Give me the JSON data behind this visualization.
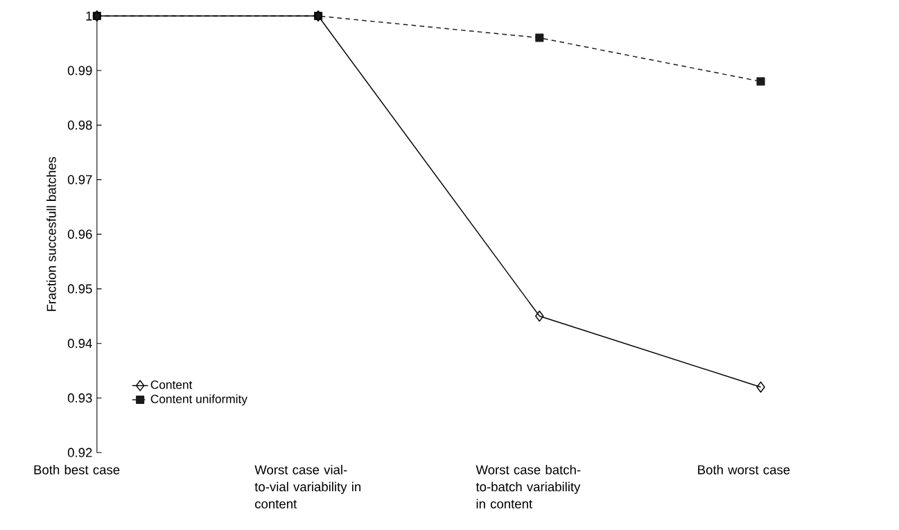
{
  "chart_data": {
    "type": "line",
    "ylabel": "Fraction succesfull batches",
    "categories": [
      "Both best case",
      "Worst case vial-to-vial variability in content",
      "Worst case batch-to-batch variability in content",
      "Both worst case"
    ],
    "series": [
      {
        "name": "Content uniformity",
        "color": "#1a1a1a",
        "values": [
          1,
          1,
          0.996,
          0.988
        ],
        "marker": "square",
        "line_style": "dashed"
      },
      {
        "name": "Content",
        "color": "#000000",
        "values": [
          1,
          1,
          0.945,
          0.932
        ],
        "marker": "diamond",
        "line_style": "solid"
      }
    ],
    "ylim": [
      0.92,
      1
    ],
    "yticks": [
      0.92,
      0.93,
      0.94,
      0.95,
      0.96,
      0.97,
      0.98,
      0.99,
      1
    ],
    "grid": false,
    "legend": "bottom left"
  }
}
